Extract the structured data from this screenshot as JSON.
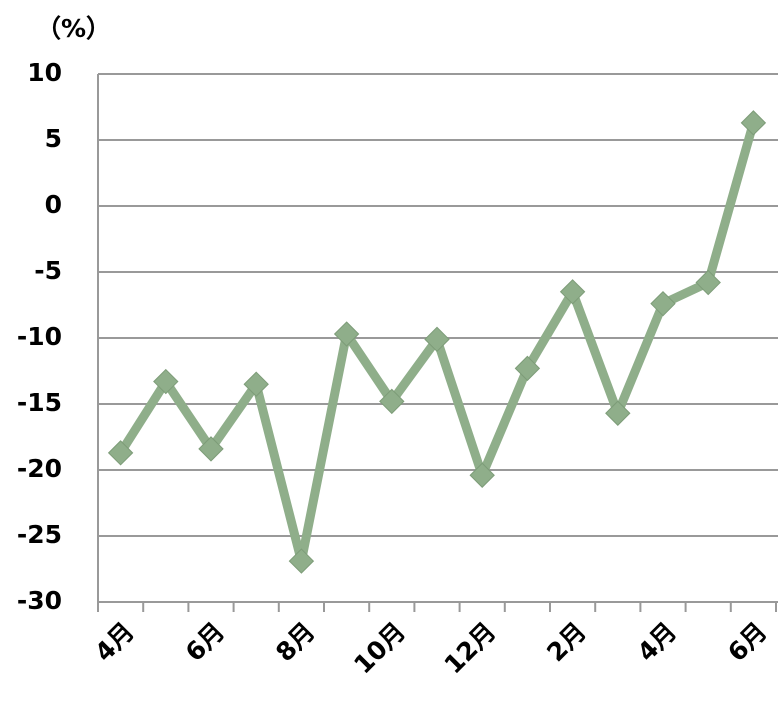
{
  "chart_data": {
    "type": "line",
    "y_label": "（%）",
    "categories": [
      "4月",
      null,
      "6月",
      null,
      "8月",
      null,
      "10月",
      null,
      "12月",
      null,
      "2月",
      null,
      "4月",
      null,
      "6月"
    ],
    "series": [
      {
        "name": null,
        "color": "#8fae8a",
        "values": [
          -18.7,
          -13.3,
          -18.4,
          -13.5,
          -26.9,
          -9.7,
          -14.8,
          -10.1,
          -20.4,
          -12.3,
          -6.5,
          -15.7,
          -7.4,
          -5.8,
          6.3
        ]
      }
    ],
    "ylim": [
      -30,
      10
    ],
    "yticks": [
      -30,
      -25,
      -20,
      -15,
      -10,
      -5,
      0,
      5,
      10
    ],
    "grid": true
  }
}
